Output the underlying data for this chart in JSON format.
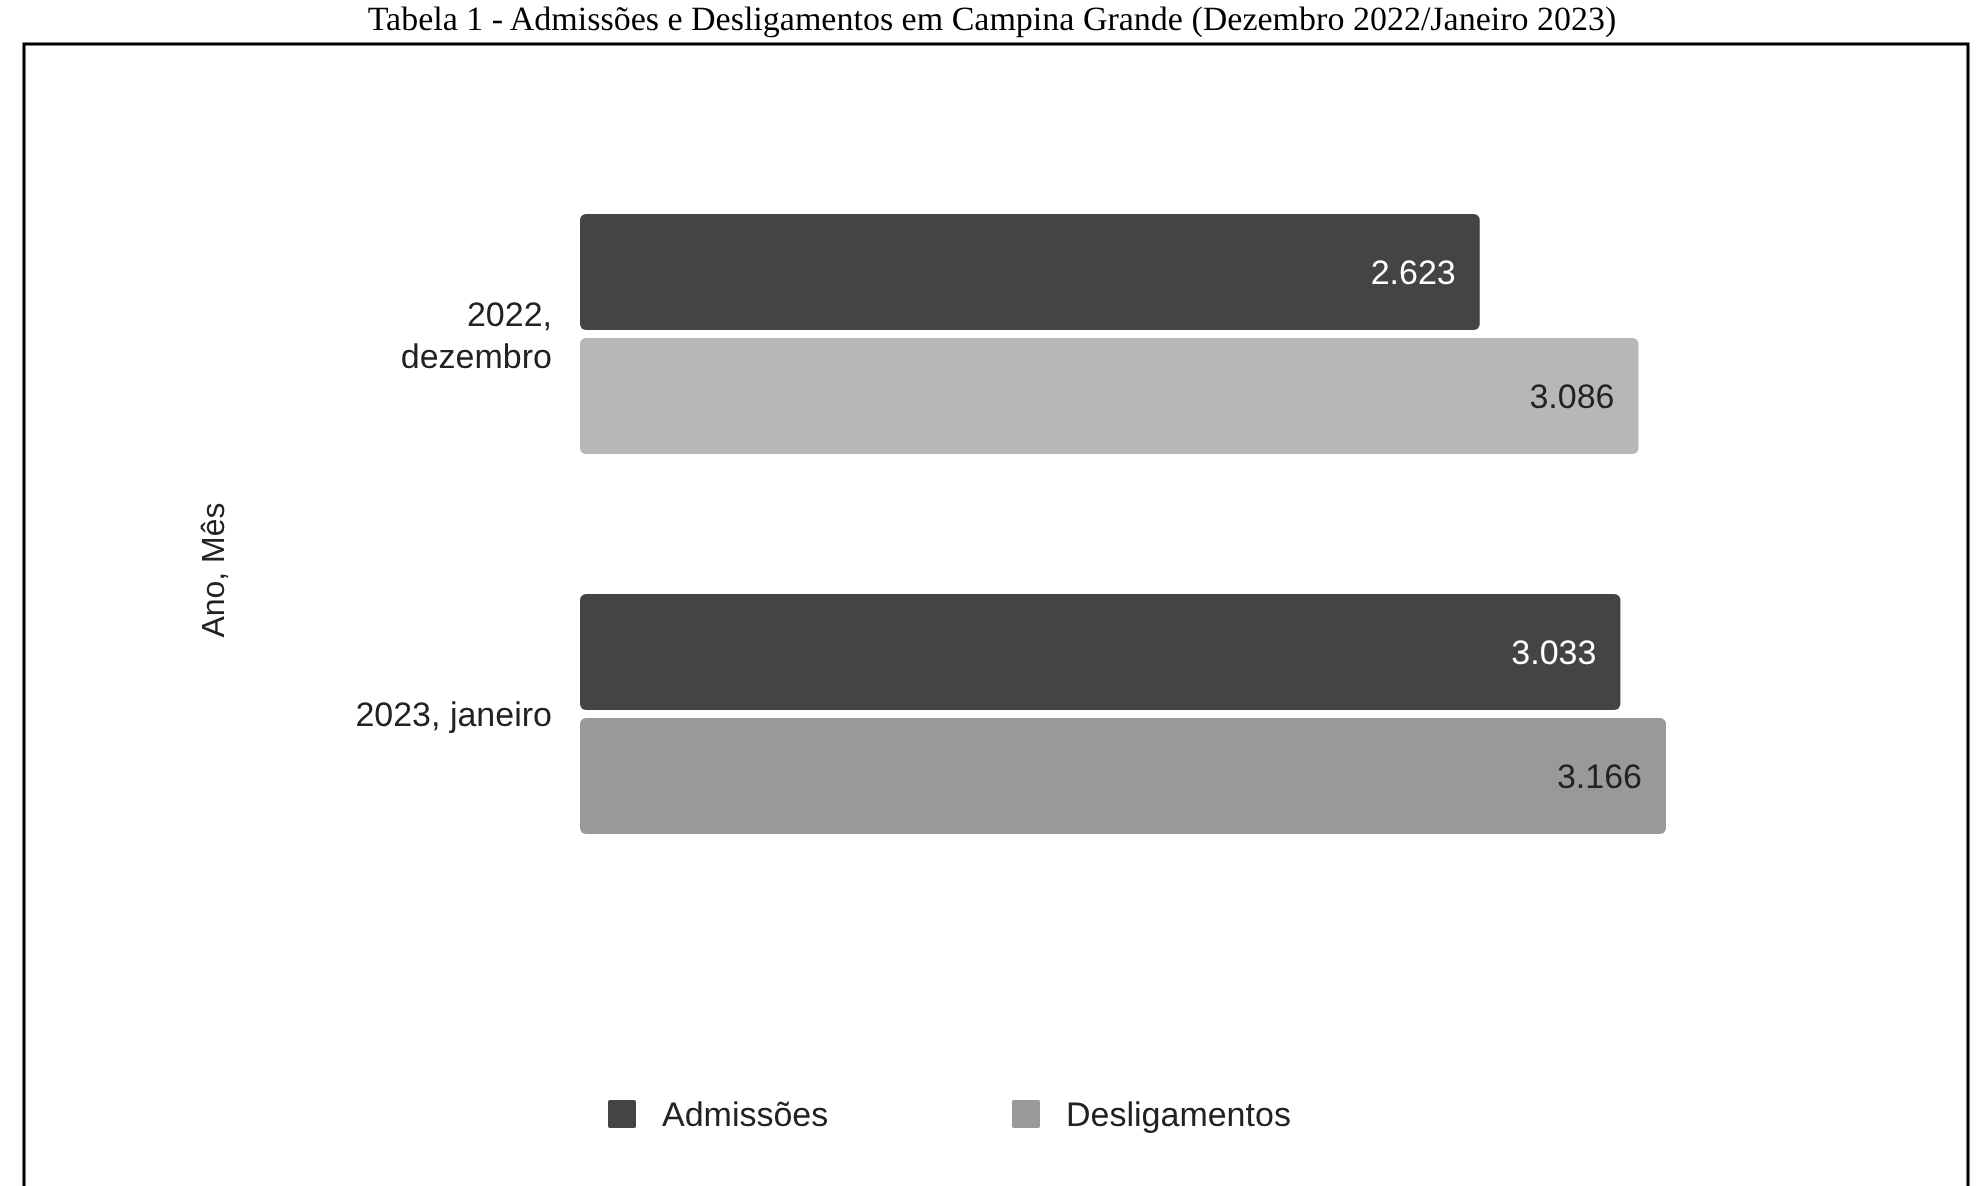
{
  "chart_data": {
    "type": "bar",
    "orientation": "horizontal",
    "title": "Tabela 1 - Admissões e Desligamentos em Campina Grande (Dezembro 2022/Janeiro 2023)",
    "ylabel": "Ano, Mês",
    "categories": [
      "2022, dezembro",
      "2023, janeiro"
    ],
    "series": [
      {
        "name": "Admissões",
        "color": "#444444",
        "values": [
          2623,
          3033
        ],
        "value_labels": [
          "2.623",
          "3.033"
        ]
      },
      {
        "name": "Desligamentos",
        "color": "#999999",
        "colors": [
          "#b7b7b7",
          "#999999"
        ],
        "values": [
          3086,
          3166
        ],
        "value_labels": [
          "3.086",
          "3.166"
        ]
      }
    ],
    "legend": "bottom"
  }
}
